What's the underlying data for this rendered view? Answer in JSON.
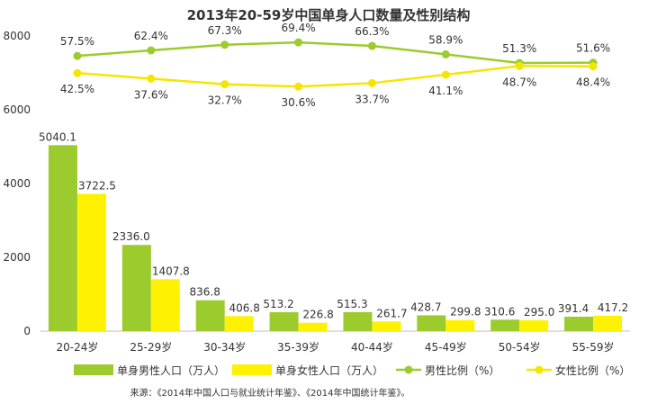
{
  "chart_data": {
    "type": "bar",
    "title": "2013年20-59岁中国单身人口数量及性别结构",
    "categories": [
      "20-24岁",
      "25-29岁",
      "30-34岁",
      "35-39岁",
      "40-44岁",
      "45-49岁",
      "50-54岁",
      "55-59岁"
    ],
    "y_ticks": [
      "0",
      "2000",
      "4000",
      "6000",
      "8000"
    ],
    "ylim": [
      0,
      8000
    ],
    "series": [
      {
        "name": "单身男性人口（万人）",
        "kind": "bar",
        "color": "#9ccb2e",
        "values": [
          5040.1,
          2336.0,
          836.8,
          513.2,
          515.3,
          428.7,
          310.6,
          391.4
        ],
        "labels": [
          "5040.1",
          "2336.0",
          "836.8",
          "513.2",
          "515.3",
          "428.7",
          "310.6",
          "391.4"
        ]
      },
      {
        "name": "单身女性人口（万人）",
        "kind": "bar",
        "color": "#fff200",
        "values": [
          3722.5,
          1407.8,
          406.8,
          226.8,
          261.7,
          299.8,
          295.0,
          417.2
        ],
        "labels": [
          "3722.5",
          "1407.8",
          "406.8",
          "226.8",
          "261.7",
          "299.8",
          "295.0",
          "417.2"
        ]
      },
      {
        "name": "男性比例（%）",
        "kind": "line",
        "color": "#9ccb2e",
        "values": [
          57.5,
          62.4,
          67.3,
          69.4,
          66.3,
          58.9,
          51.3,
          51.6
        ],
        "labels": [
          "57.5%",
          "62.4%",
          "67.3%",
          "69.4%",
          "66.3%",
          "58.9%",
          "51.3%",
          "51.6%"
        ]
      },
      {
        "name": "女性比例（%）",
        "kind": "line",
        "color": "#fff200",
        "values": [
          42.5,
          37.6,
          32.7,
          30.6,
          33.7,
          41.1,
          48.7,
          48.4
        ],
        "labels": [
          "42.5%",
          "37.6%",
          "32.7%",
          "30.6%",
          "33.7%",
          "41.1%",
          "48.7%",
          "48.4%"
        ]
      }
    ],
    "source": "来源：《2014年中国人口与就业统计年鉴》、《2014年中国统计年鉴》。",
    "legend_position": "bottom",
    "grid": false
  }
}
